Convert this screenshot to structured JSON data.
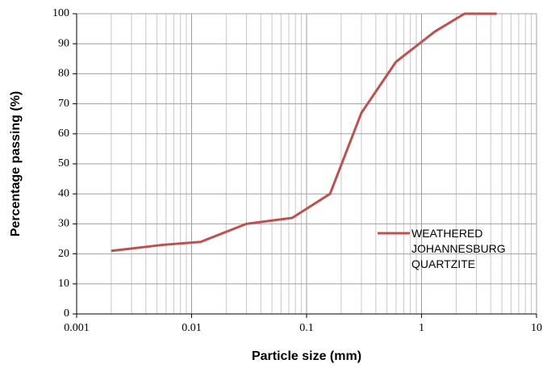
{
  "chart_data": {
    "type": "line",
    "x_label": "Particle size (mm)",
    "y_label": "Percentage passing (%)",
    "x": [
      0.002,
      0.0056,
      0.012,
      0.03,
      0.075,
      0.16,
      0.3,
      0.6,
      1.3,
      2.36,
      4.5
    ],
    "series": [
      {
        "name": "WEATHERED JOHANNESBURG QUARTZITE",
        "color": "#c0504d",
        "values": [
          21,
          23,
          24,
          30,
          32,
          40,
          67,
          84,
          94,
          100,
          100
        ]
      }
    ],
    "xlim": [
      0.001,
      10
    ],
    "xticks": [
      0.001,
      0.01,
      0.1,
      1,
      10
    ],
    "xscale": "log",
    "ylim": [
      0,
      100
    ],
    "yticks": [
      0,
      10,
      20,
      30,
      40,
      50,
      60,
      70,
      80,
      90,
      100
    ],
    "grid": true,
    "legend": "right"
  }
}
